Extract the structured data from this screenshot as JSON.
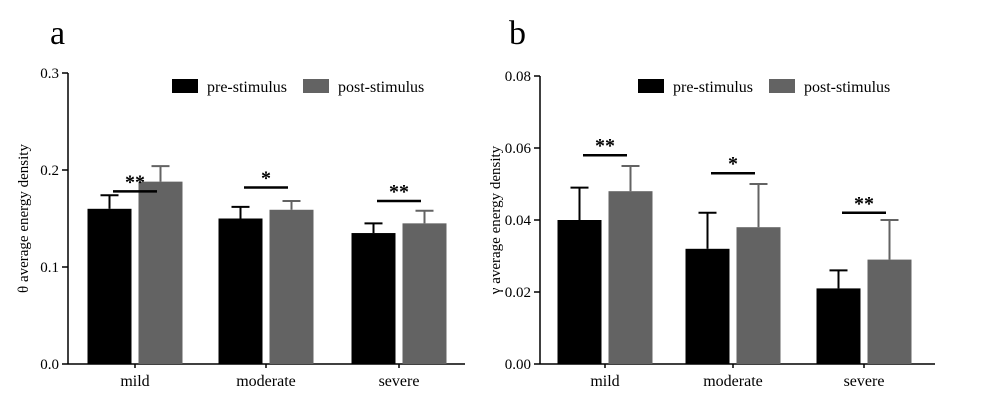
{
  "chart_data": [
    {
      "type": "bar",
      "panel_label": "a",
      "ylabel": "θ average energy density",
      "ylim": [
        0,
        0.3
      ],
      "yticks": [
        "0.0",
        "0.1",
        "0.2",
        "0.3"
      ],
      "ytick_values": [
        0,
        0.1,
        0.2,
        0.3
      ],
      "categories": [
        "mild",
        "moderate",
        "severe"
      ],
      "legend_position": "top-right",
      "series": [
        {
          "name": "pre-stimulus",
          "color": "#000000",
          "values": [
            0.16,
            0.15,
            0.135
          ],
          "errors": [
            0.014,
            0.012,
            0.01
          ]
        },
        {
          "name": "post-stimulus",
          "color": "#636363",
          "values": [
            0.188,
            0.159,
            0.145
          ],
          "errors": [
            0.016,
            0.009,
            0.013
          ]
        }
      ],
      "significance": [
        {
          "label": "**",
          "level": 0.178
        },
        {
          "label": "*",
          "level": 0.182
        },
        {
          "label": "**",
          "level": 0.168
        }
      ]
    },
    {
      "type": "bar",
      "panel_label": "b",
      "ylabel": "γ average energy density",
      "ylim": [
        0,
        0.08
      ],
      "yticks": [
        "0.00",
        "0.02",
        "0.04",
        "0.06",
        "0.08"
      ],
      "ytick_values": [
        0,
        0.02,
        0.04,
        0.06,
        0.08
      ],
      "categories": [
        "mild",
        "moderate",
        "severe"
      ],
      "legend_position": "top-right",
      "series": [
        {
          "name": "pre-stimulus",
          "color": "#000000",
          "values": [
            0.04,
            0.032,
            0.021
          ],
          "errors": [
            0.009,
            0.01,
            0.005
          ]
        },
        {
          "name": "post-stimulus",
          "color": "#636363",
          "values": [
            0.048,
            0.038,
            0.029
          ],
          "errors": [
            0.007,
            0.012,
            0.011
          ]
        }
      ],
      "significance": [
        {
          "label": "**",
          "level": 0.058
        },
        {
          "label": "*",
          "level": 0.053
        },
        {
          "label": "**",
          "level": 0.042
        }
      ]
    }
  ]
}
